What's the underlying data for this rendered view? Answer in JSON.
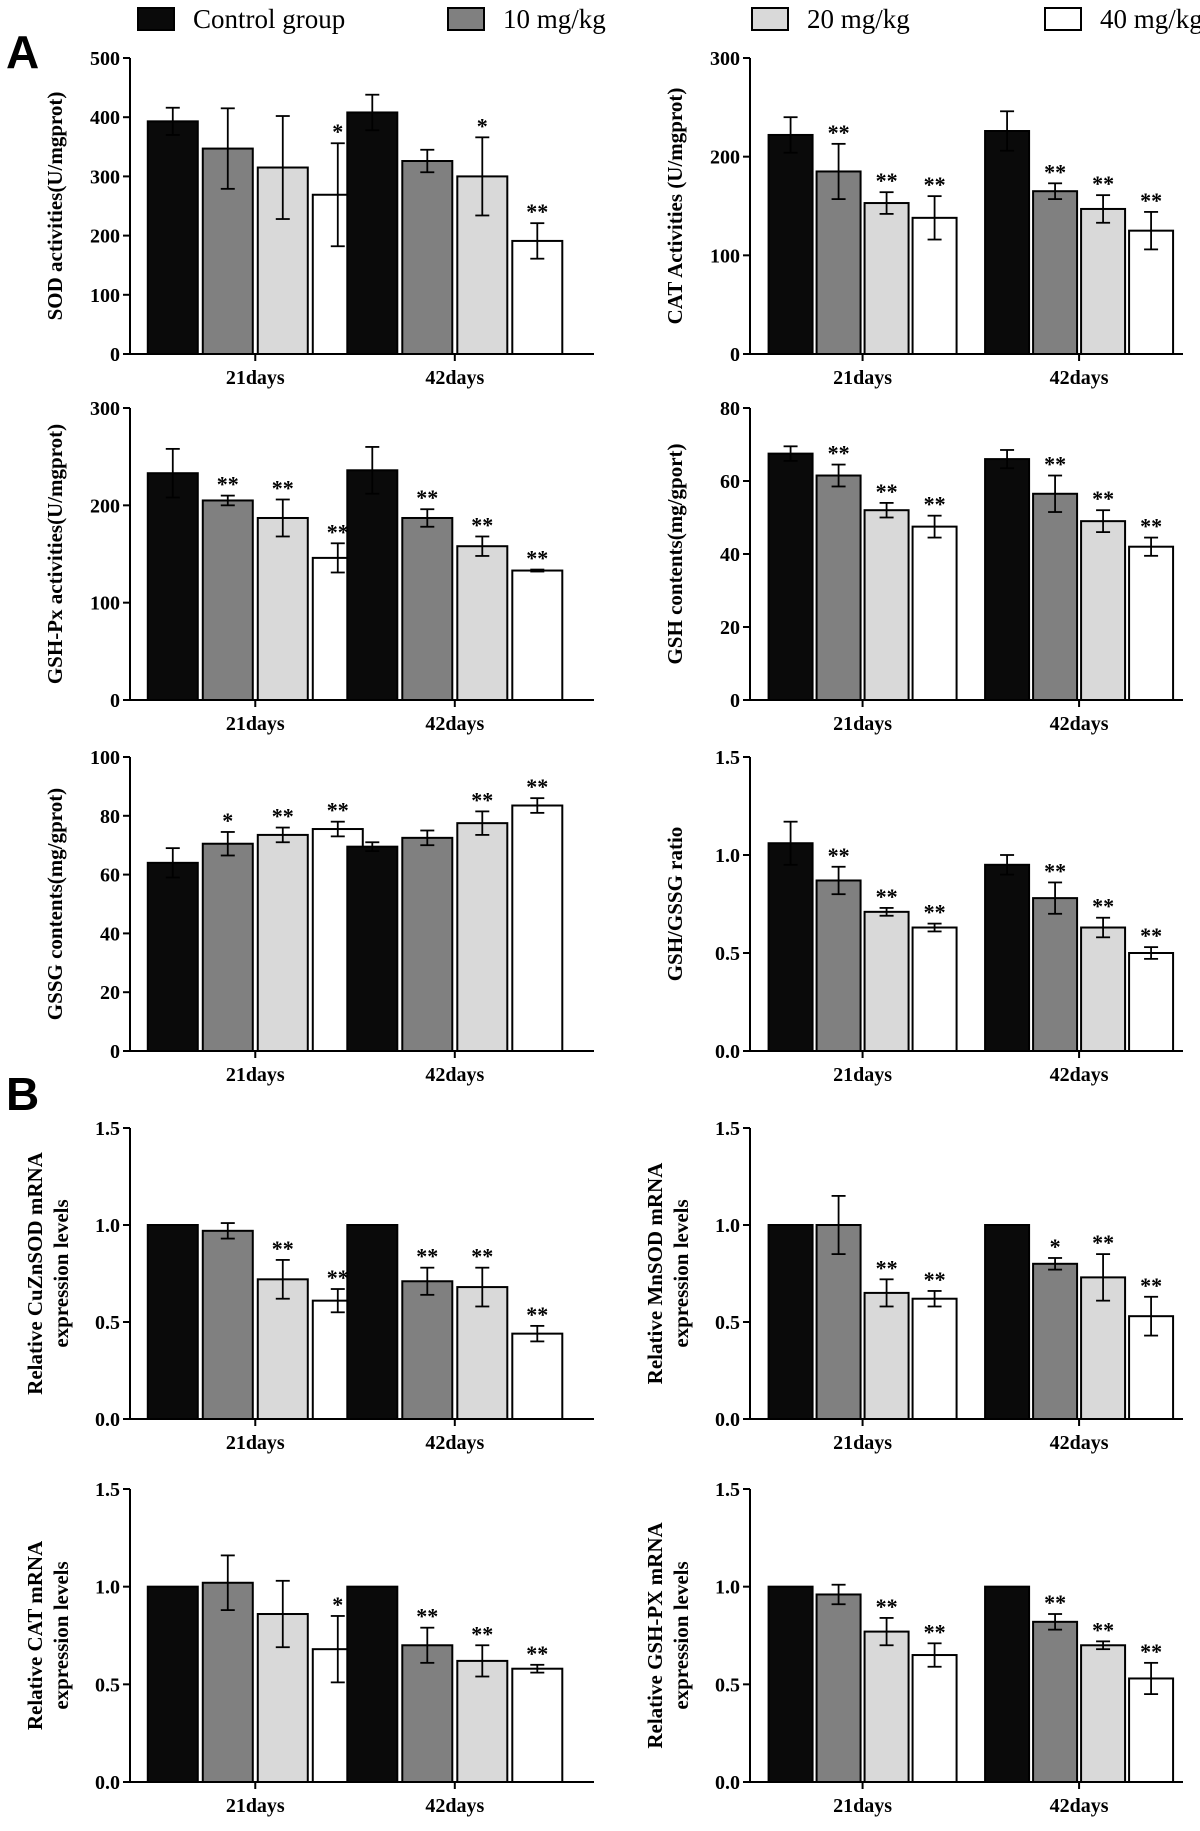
{
  "panel_labels": [
    "A",
    "B"
  ],
  "legend": [
    {
      "name": "Control group",
      "color": "#0a0a0a"
    },
    {
      "name": "10 mg/kg",
      "color": "#808080"
    },
    {
      "name": "20 mg/kg",
      "color": "#d9d9d9"
    },
    {
      "name": "40 mg/kg",
      "color": "#ffffff"
    }
  ],
  "chart_data": [
    {
      "type": "bar",
      "ylabel": [
        "SOD activities(U/mgprot)"
      ],
      "ylim": [
        0,
        500
      ],
      "yticks": [
        "0",
        "100",
        "200",
        "300",
        "400",
        "500"
      ],
      "categories": [
        "21days",
        "42days"
      ],
      "series": [
        {
          "name": "Control group",
          "values": [
            393,
            408
          ],
          "err": [
            23,
            30
          ],
          "sig": [
            "",
            ""
          ]
        },
        {
          "name": "10 mg/kg",
          "values": [
            347,
            326
          ],
          "err": [
            68,
            19
          ],
          "sig": [
            "",
            ""
          ]
        },
        {
          "name": "20 mg/kg",
          "values": [
            315,
            300
          ],
          "err": [
            87,
            66
          ],
          "sig": [
            "",
            "*"
          ]
        },
        {
          "name": "40 mg/kg",
          "values": [
            269,
            191
          ],
          "err": [
            87,
            30
          ],
          "sig": [
            "*",
            "**"
          ]
        }
      ]
    },
    {
      "type": "bar",
      "ylabel": [
        "CAT Activities (U/mgprot)"
      ],
      "ylim": [
        0,
        300
      ],
      "yticks": [
        "0",
        "100",
        "200",
        "300"
      ],
      "categories": [
        "21days",
        "42days"
      ],
      "series": [
        {
          "name": "Control group",
          "values": [
            222,
            226
          ],
          "err": [
            18,
            20
          ],
          "sig": [
            "",
            ""
          ]
        },
        {
          "name": "10 mg/kg",
          "values": [
            185,
            165
          ],
          "err": [
            28,
            8
          ],
          "sig": [
            "**",
            "**"
          ]
        },
        {
          "name": "20 mg/kg",
          "values": [
            153,
            147
          ],
          "err": [
            11,
            14
          ],
          "sig": [
            "**",
            "**"
          ]
        },
        {
          "name": "40 mg/kg",
          "values": [
            138,
            125
          ],
          "err": [
            22,
            19
          ],
          "sig": [
            "**",
            "**"
          ]
        }
      ]
    },
    {
      "type": "bar",
      "ylabel": [
        "GSH-Px activities(U/mgprot)"
      ],
      "ylim": [
        0,
        300
      ],
      "yticks": [
        "0",
        "100",
        "200",
        "300"
      ],
      "categories": [
        "21days",
        "42days"
      ],
      "series": [
        {
          "name": "Control group",
          "values": [
            233,
            236
          ],
          "err": [
            25,
            24
          ],
          "sig": [
            "",
            ""
          ]
        },
        {
          "name": "10 mg/kg",
          "values": [
            205,
            187
          ],
          "err": [
            5,
            9
          ],
          "sig": [
            "**",
            "**"
          ]
        },
        {
          "name": "20 mg/kg",
          "values": [
            187,
            158
          ],
          "err": [
            19,
            10
          ],
          "sig": [
            "**",
            "**"
          ]
        },
        {
          "name": "40 mg/kg",
          "values": [
            146,
            133
          ],
          "err": [
            15,
            1
          ],
          "sig": [
            "**",
            "**"
          ]
        }
      ]
    },
    {
      "type": "bar",
      "ylabel": [
        "GSH contents(mg/gport)"
      ],
      "ylim": [
        0,
        80
      ],
      "yticks": [
        "0",
        "20",
        "40",
        "60",
        "80"
      ],
      "categories": [
        "21days",
        "42days"
      ],
      "series": [
        {
          "name": "Control group",
          "values": [
            67.5,
            66
          ],
          "err": [
            2,
            2.5
          ],
          "sig": [
            "",
            ""
          ]
        },
        {
          "name": "10 mg/kg",
          "values": [
            61.5,
            56.5
          ],
          "err": [
            3,
            5
          ],
          "sig": [
            "**",
            "**"
          ]
        },
        {
          "name": "20 mg/kg",
          "values": [
            52,
            49
          ],
          "err": [
            2,
            3
          ],
          "sig": [
            "**",
            "**"
          ]
        },
        {
          "name": "40 mg/kg",
          "values": [
            47.5,
            42
          ],
          "err": [
            3,
            2.5
          ],
          "sig": [
            "**",
            "**"
          ]
        }
      ]
    },
    {
      "type": "bar",
      "ylabel": [
        "GSSG contents(mg/gprot)"
      ],
      "ylim": [
        0,
        100
      ],
      "yticks": [
        "0",
        "20",
        "40",
        "60",
        "80",
        "100"
      ],
      "categories": [
        "21days",
        "42days"
      ],
      "series": [
        {
          "name": "Control group",
          "values": [
            64,
            69.5
          ],
          "err": [
            5,
            1.5
          ],
          "sig": [
            "",
            ""
          ]
        },
        {
          "name": "10 mg/kg",
          "values": [
            70.5,
            72.5
          ],
          "err": [
            4,
            2.5
          ],
          "sig": [
            "*",
            ""
          ]
        },
        {
          "name": "20 mg/kg",
          "values": [
            73.5,
            77.5
          ],
          "err": [
            2.5,
            4
          ],
          "sig": [
            "**",
            "**"
          ]
        },
        {
          "name": "40 mg/kg",
          "values": [
            75.5,
            83.5
          ],
          "err": [
            2.5,
            2.5
          ],
          "sig": [
            "**",
            "**"
          ]
        }
      ]
    },
    {
      "type": "bar",
      "ylabel": [
        "GSH/GSSG ratio"
      ],
      "ylim": [
        0,
        1.5
      ],
      "yticks": [
        "0.0",
        "0.5",
        "1.0",
        "1.5"
      ],
      "categories": [
        "21days",
        "42days"
      ],
      "series": [
        {
          "name": "Control group",
          "values": [
            1.06,
            0.95
          ],
          "err": [
            0.11,
            0.05
          ],
          "sig": [
            "",
            ""
          ]
        },
        {
          "name": "10 mg/kg",
          "values": [
            0.87,
            0.78
          ],
          "err": [
            0.07,
            0.08
          ],
          "sig": [
            "**",
            "**"
          ]
        },
        {
          "name": "20 mg/kg",
          "values": [
            0.71,
            0.63
          ],
          "err": [
            0.02,
            0.05
          ],
          "sig": [
            "**",
            "**"
          ]
        },
        {
          "name": "40 mg/kg",
          "values": [
            0.63,
            0.5
          ],
          "err": [
            0.02,
            0.03
          ],
          "sig": [
            "**",
            "**"
          ]
        }
      ]
    },
    {
      "type": "bar",
      "ylabel": [
        "Relative CuZnSOD mRNA",
        "expression levels"
      ],
      "ylim": [
        0,
        1.5
      ],
      "yticks": [
        "0.0",
        "0.5",
        "1.0",
        "1.5"
      ],
      "categories": [
        "21days",
        "42days"
      ],
      "series": [
        {
          "name": "Control group",
          "values": [
            1.0,
            1.0
          ],
          "err": [
            0,
            0
          ],
          "sig": [
            "",
            ""
          ]
        },
        {
          "name": "10 mg/kg",
          "values": [
            0.97,
            0.71
          ],
          "err": [
            0.04,
            0.07
          ],
          "sig": [
            "",
            "**"
          ]
        },
        {
          "name": "20 mg/kg",
          "values": [
            0.72,
            0.68
          ],
          "err": [
            0.1,
            0.1
          ],
          "sig": [
            "**",
            "**"
          ]
        },
        {
          "name": "40 mg/kg",
          "values": [
            0.61,
            0.44
          ],
          "err": [
            0.06,
            0.04
          ],
          "sig": [
            "**",
            "**"
          ]
        }
      ]
    },
    {
      "type": "bar",
      "ylabel": [
        "Relative MnSOD mRNA",
        "expression levels"
      ],
      "ylim": [
        0,
        1.5
      ],
      "yticks": [
        "0.0",
        "0.5",
        "1.0",
        "1.5"
      ],
      "categories": [
        "21days",
        "42days"
      ],
      "series": [
        {
          "name": "Control group",
          "values": [
            1.0,
            1.0
          ],
          "err": [
            0,
            0
          ],
          "sig": [
            "",
            ""
          ]
        },
        {
          "name": "10 mg/kg",
          "values": [
            1.0,
            0.8
          ],
          "err": [
            0.15,
            0.03
          ],
          "sig": [
            "",
            "*"
          ]
        },
        {
          "name": "20 mg/kg",
          "values": [
            0.65,
            0.73
          ],
          "err": [
            0.07,
            0.12
          ],
          "sig": [
            "**",
            "**"
          ]
        },
        {
          "name": "40 mg/kg",
          "values": [
            0.62,
            0.53
          ],
          "err": [
            0.04,
            0.1
          ],
          "sig": [
            "**",
            "**"
          ]
        }
      ]
    },
    {
      "type": "bar",
      "ylabel": [
        "Relative CAT mRNA",
        "expression levels"
      ],
      "ylim": [
        0,
        1.5
      ],
      "yticks": [
        "0.0",
        "0.5",
        "1.0",
        "1.5"
      ],
      "categories": [
        "21days",
        "42days"
      ],
      "series": [
        {
          "name": "Control group",
          "values": [
            1.0,
            1.0
          ],
          "err": [
            0,
            0
          ],
          "sig": [
            "",
            ""
          ]
        },
        {
          "name": "10 mg/kg",
          "values": [
            1.02,
            0.7
          ],
          "err": [
            0.14,
            0.09
          ],
          "sig": [
            "",
            "**"
          ]
        },
        {
          "name": "20 mg/kg",
          "values": [
            0.86,
            0.62
          ],
          "err": [
            0.17,
            0.08
          ],
          "sig": [
            "",
            "**"
          ]
        },
        {
          "name": "40 mg/kg",
          "values": [
            0.68,
            0.58
          ],
          "err": [
            0.17,
            0.02
          ],
          "sig": [
            "*",
            "**"
          ]
        }
      ]
    },
    {
      "type": "bar",
      "ylabel": [
        "Relative GSH-PX mRNA",
        "expression levels"
      ],
      "ylim": [
        0,
        1.5
      ],
      "yticks": [
        "0.0",
        "0.5",
        "1.0",
        "1.5"
      ],
      "categories": [
        "21days",
        "42days"
      ],
      "series": [
        {
          "name": "Control group",
          "values": [
            1.0,
            1.0
          ],
          "err": [
            0,
            0
          ],
          "sig": [
            "",
            ""
          ]
        },
        {
          "name": "10 mg/kg",
          "values": [
            0.96,
            0.82
          ],
          "err": [
            0.05,
            0.04
          ],
          "sig": [
            "",
            "**"
          ]
        },
        {
          "name": "20 mg/kg",
          "values": [
            0.77,
            0.7
          ],
          "err": [
            0.07,
            0.02
          ],
          "sig": [
            "**",
            "**"
          ]
        },
        {
          "name": "40 mg/kg",
          "values": [
            0.65,
            0.53
          ],
          "err": [
            0.06,
            0.08
          ],
          "sig": [
            "**",
            "**"
          ]
        }
      ]
    }
  ]
}
